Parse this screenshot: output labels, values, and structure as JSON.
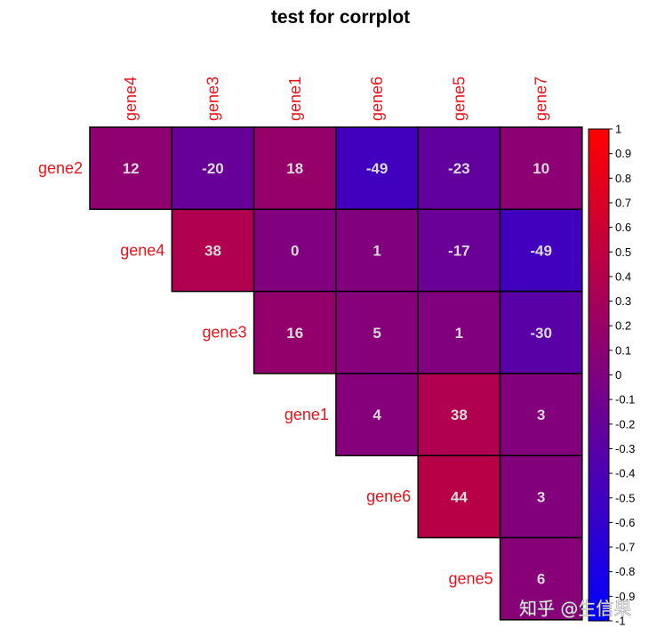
{
  "chart_data": {
    "type": "heatmap",
    "title": "test for corrplot",
    "columns": [
      "gene4",
      "gene3",
      "gene1",
      "gene6",
      "gene5",
      "gene7"
    ],
    "rows": [
      "gene2",
      "gene4",
      "gene3",
      "gene1",
      "gene6",
      "gene5"
    ],
    "values": [
      [
        12,
        -20,
        18,
        -49,
        -23,
        10
      ],
      [
        38,
        0,
        1,
        -17,
        -49
      ],
      [
        16,
        5,
        1,
        -30
      ],
      [
        4,
        38,
        3
      ],
      [
        44,
        3
      ],
      [
        6
      ]
    ],
    "layout": "upper-triangle",
    "colorbar": {
      "min": -1,
      "max": 1,
      "ticks": [
        "1",
        "0.9",
        "0.8",
        "0.7",
        "0.6",
        "0.5",
        "0.4",
        "0.3",
        "0.2",
        "0.1",
        "0",
        "-0.1",
        "-0.2",
        "-0.3",
        "-0.4",
        "-0.5",
        "-0.6",
        "-0.7",
        "-0.8",
        "-0.9",
        "-1"
      ],
      "colors": [
        "#0000ff",
        "#ff0000"
      ],
      "placement": "right"
    },
    "label_color": "#e8141c"
  },
  "watermark": "知乎 @生信果"
}
